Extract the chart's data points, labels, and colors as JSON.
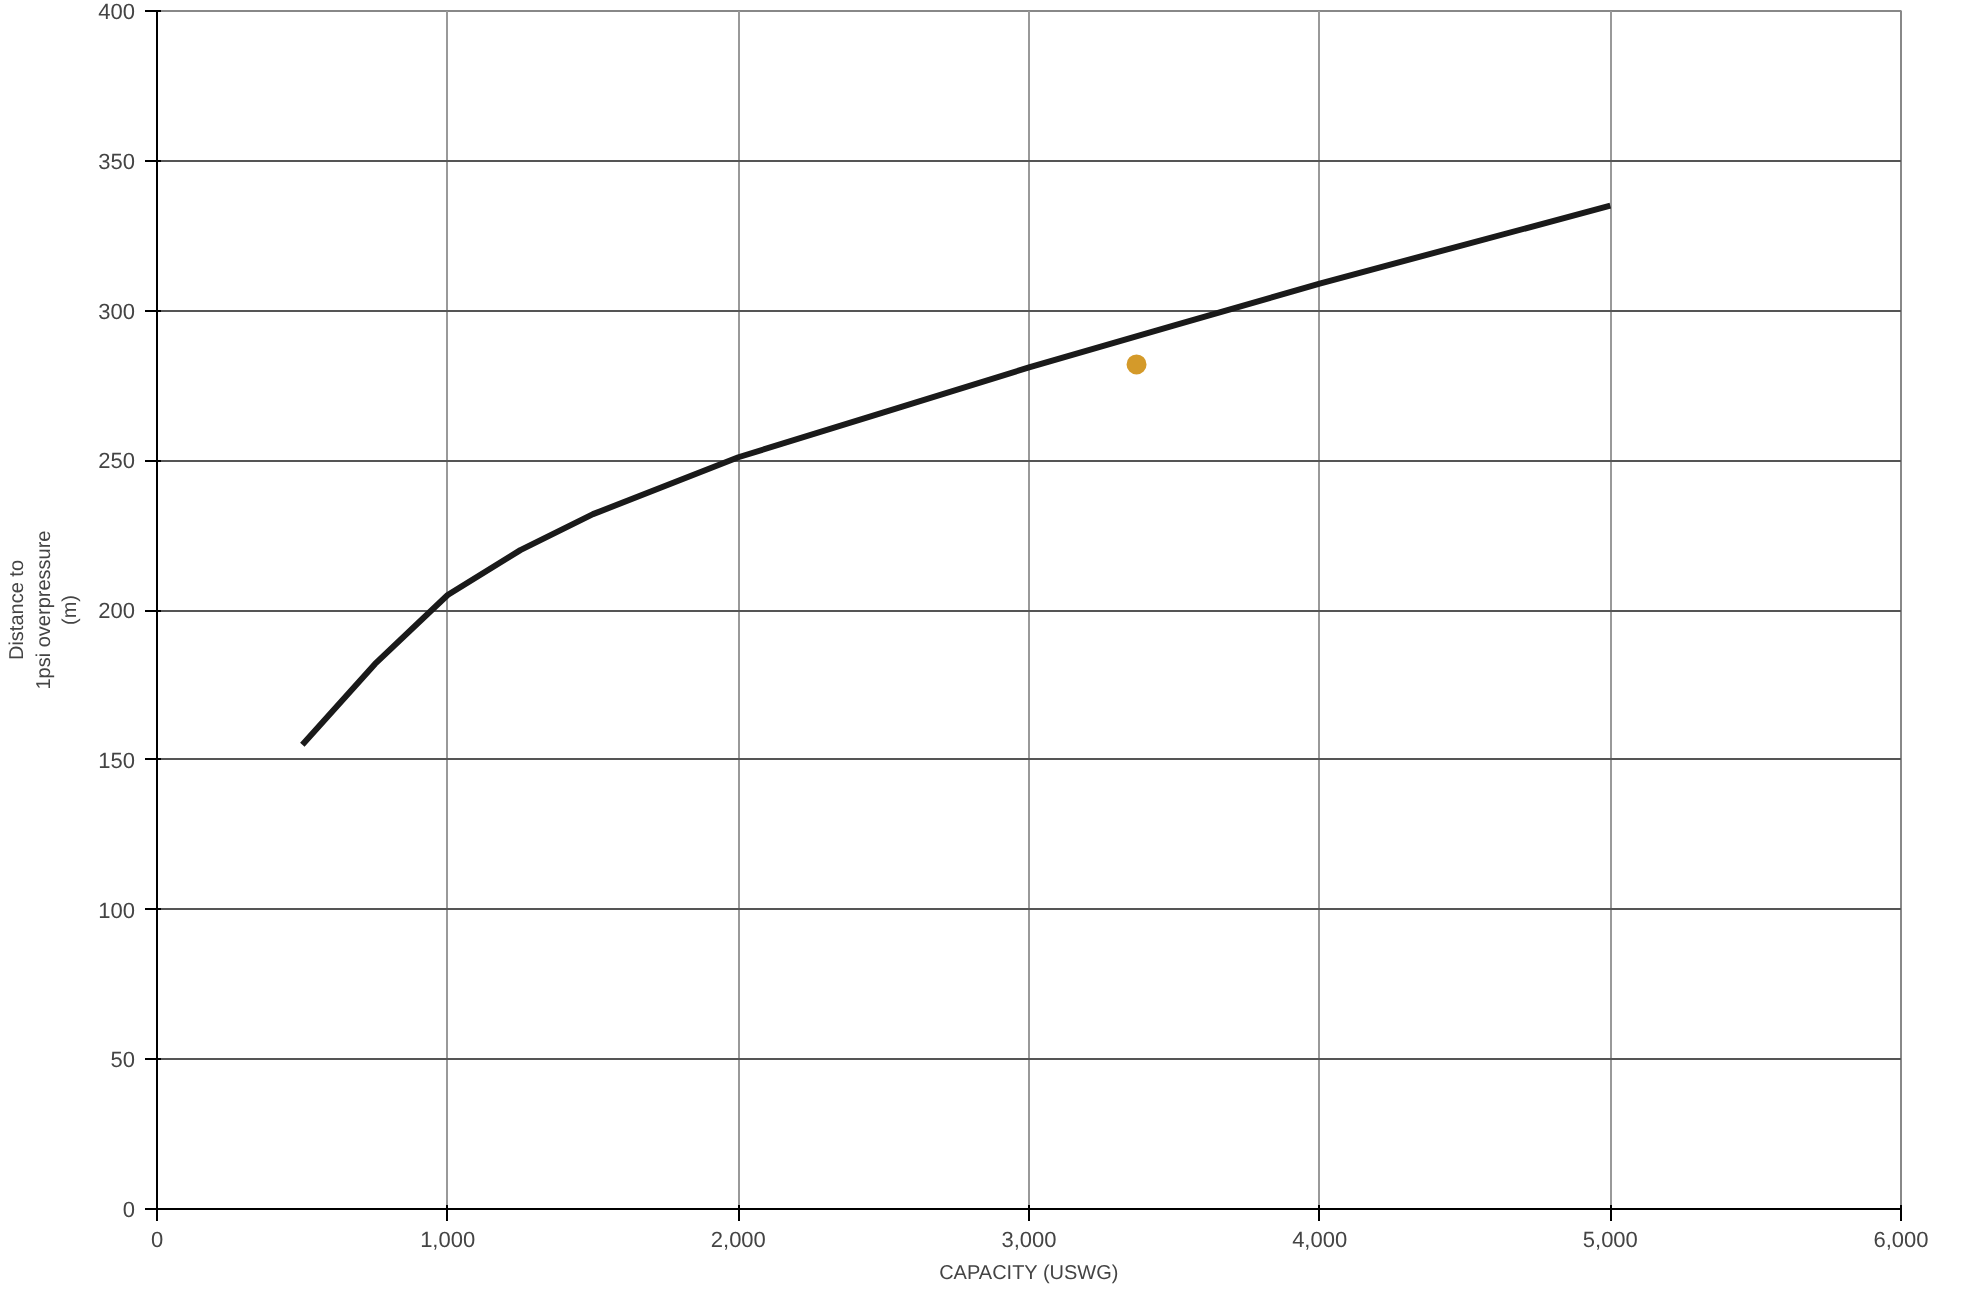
{
  "chart_data": {
    "type": "line",
    "xlabel": "CAPACITY (USWG)",
    "ylabel": "Distance to\n1psi overpressure\n(m)",
    "xlim": [
      0,
      6000
    ],
    "xticks": [
      0,
      {
        "value": 1000,
        "label": "1,000"
      },
      {
        "value": 2000,
        "label": "2,000"
      },
      {
        "value": 3000,
        "label": "3,000"
      },
      {
        "value": 4000,
        "label": "4,000"
      },
      {
        "value": 5000,
        "label": "5,000"
      },
      {
        "value": 6000,
        "label": "6,000"
      }
    ],
    "ylim": [
      0,
      400
    ],
    "yticks": [
      0,
      50,
      100,
      150,
      200,
      250,
      300,
      350,
      400
    ],
    "grid": true,
    "line_style": "solid",
    "series": [
      {
        "color": "#1a1a1a",
        "x": [
          500,
          750,
          1000,
          1250,
          1500,
          2000,
          2500,
          3000,
          3500,
          4000,
          4500,
          5000
        ],
        "values": [
          155,
          182,
          205,
          220,
          232,
          251,
          266,
          281,
          295,
          309,
          322,
          335
        ]
      },
      {
        "type": "scatter",
        "marker": "circle",
        "color": "#d49a2a",
        "x": [
          3370
        ],
        "values": [
          282
        ]
      }
    ]
  }
}
